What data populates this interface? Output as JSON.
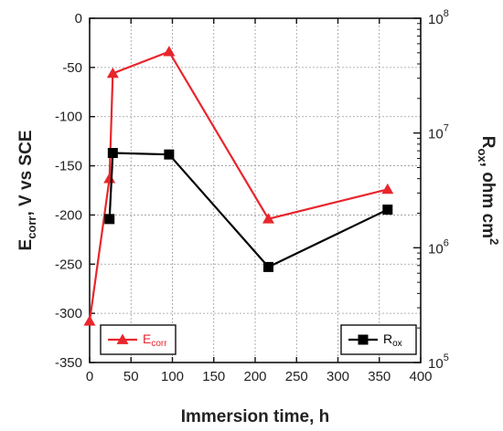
{
  "chart_data": {
    "type": "line",
    "xlabel": "Immersion time, h",
    "ylabel_left": {
      "main": "E",
      "sub": "corr",
      "rest": ", V vs SCE"
    },
    "ylabel_right": {
      "main": "R",
      "sub": "ox",
      "rest": ", ohm cm",
      "sup": "2"
    },
    "xlim": [
      0,
      400
    ],
    "ylim_left": [
      -350,
      0
    ],
    "ylim_right_log": [
      100000,
      100000000
    ],
    "x_ticks": [
      "0",
      "50",
      "100",
      "150",
      "200",
      "250",
      "300",
      "350",
      "400"
    ],
    "y_left_ticks": [
      "0",
      "-50",
      "-100",
      "-150",
      "-200",
      "-250",
      "-300",
      "-350"
    ],
    "y_right_ticks": [
      {
        "base": "10",
        "exp": "8"
      },
      {
        "base": "10",
        "exp": "7"
      },
      {
        "base": "10",
        "exp": "6"
      },
      {
        "base": "10",
        "exp": "5"
      }
    ],
    "grid": true,
    "series": [
      {
        "name": "E",
        "name_sub": "corr",
        "axis": "left",
        "color": "#e8262c",
        "marker": "triangle",
        "legend_position": "bottom-left",
        "x": [
          0,
          24,
          28,
          96,
          216,
          360
        ],
        "y": [
          -308,
          -163,
          -56,
          -34,
          -204,
          -174
        ]
      },
      {
        "name": "R",
        "name_sub": "ox",
        "axis": "right",
        "color": "#000000",
        "marker": "square",
        "legend_position": "bottom-right",
        "x": [
          24,
          28,
          96,
          216,
          360
        ],
        "y": [
          1780000,
          6700000,
          6500000,
          680000,
          2150000
        ]
      }
    ]
  }
}
